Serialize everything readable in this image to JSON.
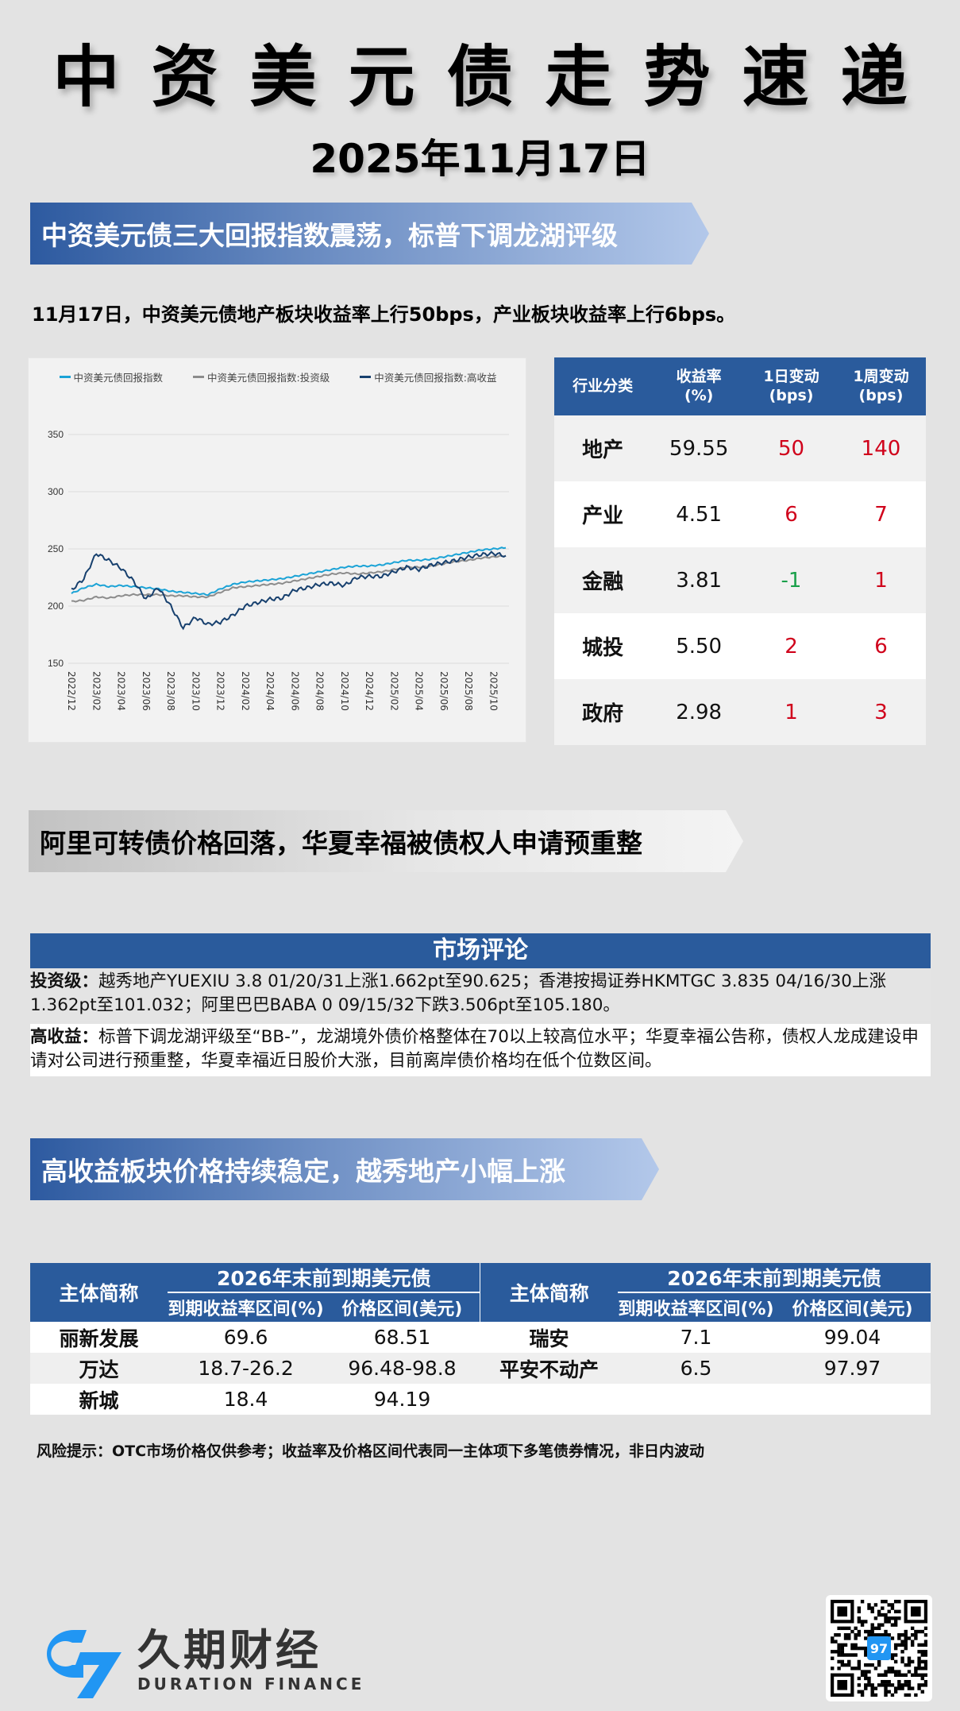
{
  "header": {
    "title": "中资美元债走势速递",
    "date": "2025年11月17日"
  },
  "section1": {
    "banner": "中资美元债三大回报指数震荡，标普下调龙湖评级",
    "summary": "11月17日，中资美元债地产板块收益率上行50bps，产业板块收益率上行6bps。"
  },
  "chart_data": {
    "type": "line",
    "title": "",
    "xlabel": "",
    "ylabel": "",
    "ylim": [
      150,
      350
    ],
    "yticks": [
      150,
      200,
      250,
      300,
      350
    ],
    "grid": true,
    "legend_position": "top",
    "x_tick_labels": [
      "2022/12",
      "2023/02",
      "2023/04",
      "2023/06",
      "2023/08",
      "2023/10",
      "2023/12",
      "2024/02",
      "2024/04",
      "2024/06",
      "2024/08",
      "2024/10",
      "2024/12",
      "2025/02",
      "2025/04",
      "2025/06",
      "2025/08",
      "2025/10"
    ],
    "x": [
      "2022/12",
      "2023/01",
      "2023/02",
      "2023/03",
      "2023/04",
      "2023/05",
      "2023/06",
      "2023/07",
      "2023/08",
      "2023/09",
      "2023/10",
      "2023/11",
      "2023/12",
      "2024/01",
      "2024/02",
      "2024/03",
      "2024/04",
      "2024/05",
      "2024/06",
      "2024/07",
      "2024/08",
      "2024/09",
      "2024/10",
      "2024/11",
      "2024/12",
      "2025/01",
      "2025/02",
      "2025/03",
      "2025/04",
      "2025/05",
      "2025/06",
      "2025/07",
      "2025/08",
      "2025/09",
      "2025/10",
      "2025/11"
    ],
    "series": [
      {
        "name": "中资美元债回报指数",
        "color": "#1ba3d6",
        "values": [
          211,
          216,
          219,
          217,
          218,
          217,
          216,
          215,
          213,
          212,
          211,
          210,
          215,
          219,
          221,
          222,
          223,
          224,
          226,
          228,
          230,
          232,
          234,
          235,
          235,
          236,
          238,
          240,
          240,
          241,
          243,
          245,
          247,
          249,
          250,
          251
        ]
      },
      {
        "name": "中资美元债回报指数:投资级",
        "color": "#8c8c8c",
        "values": [
          204,
          205,
          208,
          207,
          209,
          210,
          210,
          210,
          209,
          209,
          208,
          208,
          212,
          216,
          217,
          218,
          219,
          220,
          222,
          224,
          226,
          228,
          229,
          228,
          229,
          230,
          232,
          234,
          234,
          235,
          237,
          239,
          240,
          242,
          243,
          244
        ]
      },
      {
        "name": "中资美元债回报指数:高收益",
        "color": "#17406e",
        "values": [
          214,
          224,
          246,
          240,
          233,
          222,
          206,
          216,
          200,
          181,
          190,
          184,
          186,
          192,
          200,
          203,
          206,
          207,
          214,
          216,
          219,
          220,
          218,
          225,
          226,
          226,
          230,
          234,
          232,
          236,
          238,
          240,
          243,
          245,
          246,
          244
        ]
      }
    ]
  },
  "sector_table": {
    "headers": [
      "行业分类",
      "收益率\n(%)",
      "1日变动\n(bps)",
      "1周变动\n(bps)"
    ],
    "header_lines": [
      [
        "行业分类"
      ],
      [
        "收益率",
        "(%)"
      ],
      [
        "1日变动",
        "(bps)"
      ],
      [
        "1周变动",
        "(bps)"
      ]
    ],
    "rows": [
      {
        "category": "地产",
        "yield": "59.55",
        "d1": "50",
        "w1": "140",
        "d1_dir": "up",
        "w1_dir": "up"
      },
      {
        "category": "产业",
        "yield": "4.51",
        "d1": "6",
        "w1": "7",
        "d1_dir": "up",
        "w1_dir": "up"
      },
      {
        "category": "金融",
        "yield": "3.81",
        "d1": "-1",
        "w1": "1",
        "d1_dir": "down",
        "w1_dir": "up"
      },
      {
        "category": "城投",
        "yield": "5.50",
        "d1": "2",
        "w1": "6",
        "d1_dir": "up",
        "w1_dir": "up"
      },
      {
        "category": "政府",
        "yield": "2.98",
        "d1": "1",
        "w1": "3",
        "d1_dir": "up",
        "w1_dir": "up"
      }
    ],
    "colors": {
      "up": "#d0021b",
      "down": "#1aa04a",
      "header_bg": "#2a5b9c"
    }
  },
  "section2": {
    "banner": "阿里可转债价格回落，华夏幸福被债权人申请预重整"
  },
  "market_comment": {
    "title": "市场评论",
    "investment_grade_label": "投资级：",
    "investment_grade_text": "越秀地产YUEXIU 3.8 01/20/31上涨1.662pt至90.625；香港按揭证券HKMTGC 3.835 04/16/30上涨1.362pt至101.032；阿里巴巴BABA 0 09/15/32下跌3.506pt至105.180。",
    "high_yield_label": "高收益：",
    "high_yield_text": "标普下调龙湖评级至“BB-”，龙湖境外债价格整体在70以上较高位水平；华夏幸福公告称，债权人龙成建设申请对公司进行预重整，华夏幸福近日股价大涨，目前离岸债价格均在低个位数区间。"
  },
  "section3": {
    "banner": "高收益板块价格持续稳定，越秀地产小幅上涨"
  },
  "bond_table": {
    "name_header": "主体简称",
    "group_header": "2026年末前到期美元债",
    "yield_header": "到期收益率区间(%)",
    "price_header": "价格区间(美元)",
    "left_rows": [
      {
        "name": "丽新发展",
        "yield": "69.6",
        "price": "68.51"
      },
      {
        "name": "万达",
        "yield": "18.7-26.2",
        "price": "96.48-98.8"
      },
      {
        "name": "新城",
        "yield": "18.4",
        "price": "94.19"
      }
    ],
    "right_rows": [
      {
        "name": "瑞安",
        "yield": "7.1",
        "price": "99.04"
      },
      {
        "name": "平安不动产",
        "yield": "6.5",
        "price": "97.97"
      },
      {
        "name": "",
        "yield": "",
        "price": ""
      }
    ]
  },
  "risk_notice": "风险提示：OTC市场价格仅供参考；收益率及价格区间代表同一主体项下多笔债券情况，非日内波动",
  "footer": {
    "logo_mark": "97",
    "brand_cn": "久期财经",
    "brand_en": "DURATION FINANCE",
    "brand_color": "#2196f3",
    "qr_icon": "qr-code-icon"
  }
}
